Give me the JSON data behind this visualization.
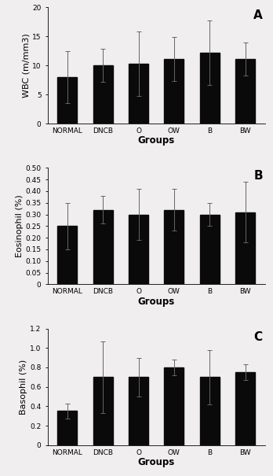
{
  "groups": [
    "NORMAL",
    "DNCB",
    "O",
    "OW",
    "B",
    "BW"
  ],
  "wbc": {
    "values": [
      8.0,
      10.0,
      10.3,
      11.1,
      12.2,
      11.1
    ],
    "errors": [
      4.5,
      2.8,
      5.5,
      3.8,
      5.5,
      2.8
    ],
    "ylabel": "WBC (m/mm3)",
    "ylim": [
      0,
      20
    ],
    "yticks": [
      0,
      5,
      10,
      15,
      20
    ],
    "ytick_labels": [
      "0",
      "5",
      "10",
      "15",
      "20"
    ],
    "label": "A"
  },
  "eosinophil": {
    "values": [
      0.25,
      0.32,
      0.3,
      0.32,
      0.3,
      0.31
    ],
    "errors": [
      0.1,
      0.06,
      0.11,
      0.09,
      0.05,
      0.13
    ],
    "ylabel": "Eosinophil (%)",
    "ylim": [
      0,
      0.5
    ],
    "yticks": [
      0,
      0.05,
      0.1,
      0.15,
      0.2,
      0.25,
      0.3,
      0.35,
      0.4,
      0.45,
      0.5
    ],
    "ytick_labels": [
      "0",
      "0.05",
      "0.10",
      "0.15",
      "0.20",
      "0.25",
      "0.30",
      "0.35",
      "0.40",
      "0.45",
      "0.50"
    ],
    "label": "B"
  },
  "basophil": {
    "values": [
      0.35,
      0.7,
      0.7,
      0.8,
      0.7,
      0.75
    ],
    "errors": [
      0.08,
      0.37,
      0.2,
      0.08,
      0.28,
      0.08
    ],
    "ylabel": "Basophil (%)",
    "ylim": [
      0,
      1.2
    ],
    "yticks": [
      0,
      0.2,
      0.4,
      0.6,
      0.8,
      1.0,
      1.2
    ],
    "ytick_labels": [
      "0",
      "0.2",
      "0.4",
      "0.6",
      "0.8",
      "1.0",
      "1.2"
    ],
    "label": "C"
  },
  "bar_color": "#0a0a0a",
  "error_color": "#666666",
  "xlabel": "Groups",
  "xlabel_fontsize": 8.5,
  "ylabel_fontsize": 8,
  "tick_fontsize": 6.5,
  "label_fontsize": 11,
  "bar_width": 0.55,
  "background": "#f0eeee"
}
